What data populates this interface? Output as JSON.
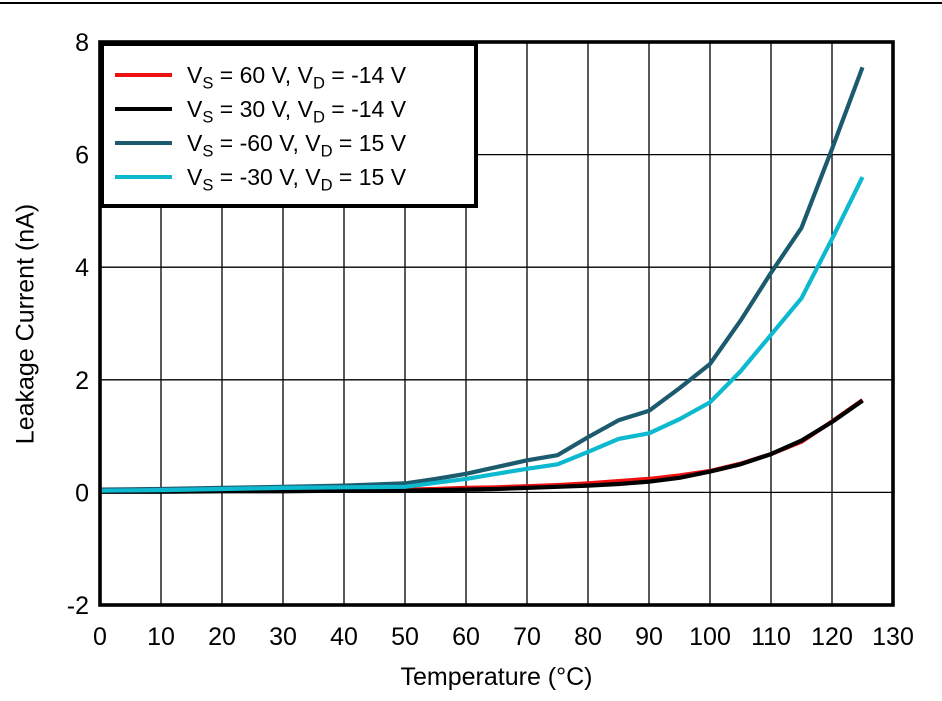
{
  "figure": {
    "background_color": "#ffffff",
    "top_rule_color": "#000000",
    "frame_color": "#000000",
    "grid_color": "#000000"
  },
  "chart_data": {
    "type": "line",
    "title": "",
    "xlabel": "Temperature (°C)",
    "ylabel": "Leakage Current (nA)",
    "xlim": [
      0,
      130
    ],
    "ylim": [
      -2,
      8
    ],
    "x_ticks": [
      0,
      10,
      20,
      30,
      40,
      50,
      60,
      70,
      80,
      90,
      100,
      110,
      120,
      130
    ],
    "y_ticks": [
      -2,
      0,
      2,
      4,
      6,
      8
    ],
    "grid": true,
    "legend_position": "top-left",
    "x": [
      0,
      10,
      20,
      30,
      40,
      50,
      55,
      60,
      65,
      70,
      75,
      80,
      85,
      90,
      95,
      100,
      105,
      110,
      115,
      120,
      125
    ],
    "series": [
      {
        "name": "VS = 60 V, VD = -14 V",
        "color": "#ee1111",
        "label_parts": [
          {
            "text": "V"
          },
          {
            "text": "S",
            "sub": true
          },
          {
            "text": " = 60 V, V"
          },
          {
            "text": "D",
            "sub": true
          },
          {
            "text": " = -14 V"
          }
        ],
        "values": [
          0.02,
          0.02,
          0.03,
          0.03,
          0.04,
          0.05,
          0.06,
          0.08,
          0.09,
          0.11,
          0.13,
          0.16,
          0.2,
          0.24,
          0.3,
          0.38,
          0.51,
          0.68,
          0.9,
          1.26,
          1.64
        ]
      },
      {
        "name": "VS = 30 V, VD = -14 V",
        "color": "#000000",
        "label_parts": [
          {
            "text": "V"
          },
          {
            "text": "S",
            "sub": true
          },
          {
            "text": " = 30 V, V"
          },
          {
            "text": "D",
            "sub": true
          },
          {
            "text": " = -14 V"
          }
        ],
        "values": [
          0.01,
          0.01,
          0.02,
          0.02,
          0.03,
          0.03,
          0.04,
          0.05,
          0.06,
          0.08,
          0.1,
          0.12,
          0.15,
          0.19,
          0.26,
          0.37,
          0.5,
          0.68,
          0.92,
          1.25,
          1.63
        ]
      },
      {
        "name": "VS = -60 V, VD = 15 V",
        "color": "#1c5a6e",
        "label_parts": [
          {
            "text": "V"
          },
          {
            "text": "S",
            "sub": true
          },
          {
            "text": " = -60 V, V"
          },
          {
            "text": "D",
            "sub": true
          },
          {
            "text": " = 15 V"
          }
        ],
        "values": [
          0.05,
          0.06,
          0.08,
          0.1,
          0.12,
          0.16,
          0.24,
          0.33,
          0.45,
          0.57,
          0.66,
          0.98,
          1.28,
          1.45,
          1.85,
          2.28,
          3.05,
          3.9,
          4.7,
          6.1,
          7.55
        ]
      },
      {
        "name": "VS = -30 V, VD = 15 V",
        "color": "#0db9cf",
        "label_parts": [
          {
            "text": "V"
          },
          {
            "text": "S",
            "sub": true
          },
          {
            "text": " = -30 V, V"
          },
          {
            "text": "D",
            "sub": true
          },
          {
            "text": " = 15 V"
          }
        ],
        "values": [
          0.03,
          0.04,
          0.06,
          0.08,
          0.09,
          0.1,
          0.17,
          0.24,
          0.33,
          0.42,
          0.5,
          0.72,
          0.95,
          1.05,
          1.3,
          1.6,
          2.15,
          2.8,
          3.45,
          4.5,
          5.6
        ]
      }
    ]
  }
}
